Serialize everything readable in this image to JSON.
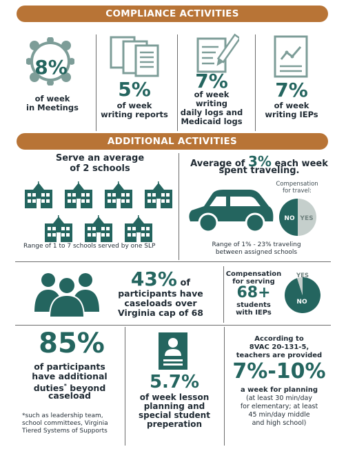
{
  "compliance": {
    "banner": "COMPLIANCE ACTIVITIES",
    "meetings": {
      "pct": "8%",
      "label1": "of week",
      "label2": "in Meetings"
    },
    "reports": {
      "pct": "5%",
      "label1": "of week",
      "label2": "writing reports"
    },
    "logs": {
      "pct": "7%",
      "label1": "of week",
      "label2": "writing",
      "label3": "daily logs and",
      "label4": "Medicaid logs"
    },
    "ieps": {
      "pct": "7%",
      "label1": "of week",
      "label2": "writing IEPs"
    }
  },
  "additional": {
    "banner": "ADDITIONAL ACTIVITIES",
    "schools": {
      "line1": "Serve an average",
      "line2": "of 2 schools",
      "range": "Range of 1 to 7 schools served by one SLP"
    },
    "travel": {
      "pre": "Average of ",
      "pct": "3%",
      "post": " each week",
      "line2": "spent traveling.",
      "range1": "Range of 1% - 23% traveling",
      "range2": "between assigned schools",
      "comp_label1": "Compensation",
      "comp_label2": "for travel:",
      "no": "NO",
      "yes": "YES",
      "no_share": 0.5
    },
    "caseload": {
      "pct": "43%",
      "suffix": " of",
      "line2": "participants have",
      "line3": "caseloads over",
      "line4": "Virginia cap of 68"
    },
    "ieps68": {
      "line1": "Compensation",
      "line2": "for serving",
      "big": "68+",
      "line3": "students",
      "line4": "with IEPs",
      "yes": "YES",
      "no": "NO",
      "no_share": 0.95
    },
    "duties": {
      "pct": "85%",
      "line1": "of participants",
      "line2": "have additional",
      "line3": "duties",
      "star": "*",
      "line3b": " beyond",
      "line4": "caseload",
      "note1": "*such as leadership team,",
      "note2": "school committees, Virginia",
      "note3": "Tiered Systems of Supports"
    },
    "planning": {
      "pct": "5.7%",
      "line1": "of week lesson",
      "line2": "planning and",
      "line3": "special student",
      "line4": "preperation"
    },
    "teachers": {
      "line1": "According to",
      "line2": "8VAC 20-131-5,",
      "line3": "teachers are provided",
      "big": "7%-10%",
      "line4": "a week for planning",
      "line5": "(at least 30 min/day",
      "line6": "for elementary; at least",
      "line7": "45 min/day middle",
      "line8": "and high school)"
    }
  },
  "colors": {
    "teal": "#24655f",
    "orange": "#b87436",
    "gray": "#c5cfcc",
    "dark": "#1f2a33"
  }
}
